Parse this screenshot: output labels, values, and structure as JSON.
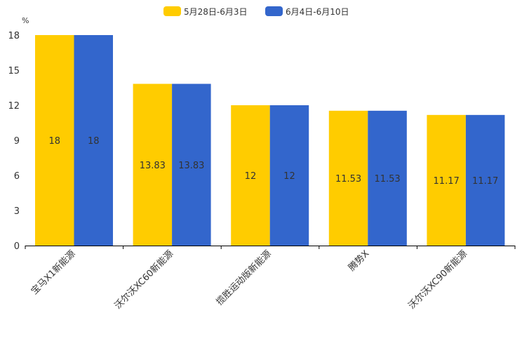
{
  "chart_data": {
    "type": "bar",
    "unit_label": "%",
    "categories": [
      "宝马X1新能源",
      "沃尔沃XC60新能源",
      "揽胜运动版新能源",
      "腾势X",
      "沃尔沃XC90新能源"
    ],
    "series": [
      {
        "name": "5月28日-6月3日",
        "color": "#FFCC00",
        "values": [
          18,
          13.83,
          12,
          11.53,
          11.17
        ]
      },
      {
        "name": "6月4日-6月10日",
        "color": "#3366CC",
        "values": [
          18,
          13.83,
          12,
          11.53,
          11.17
        ]
      }
    ],
    "ylim": [
      0,
      18
    ],
    "yticks": [
      0,
      3,
      6,
      9,
      12,
      15,
      18
    ],
    "legend_position": "top-center",
    "grid": false
  }
}
